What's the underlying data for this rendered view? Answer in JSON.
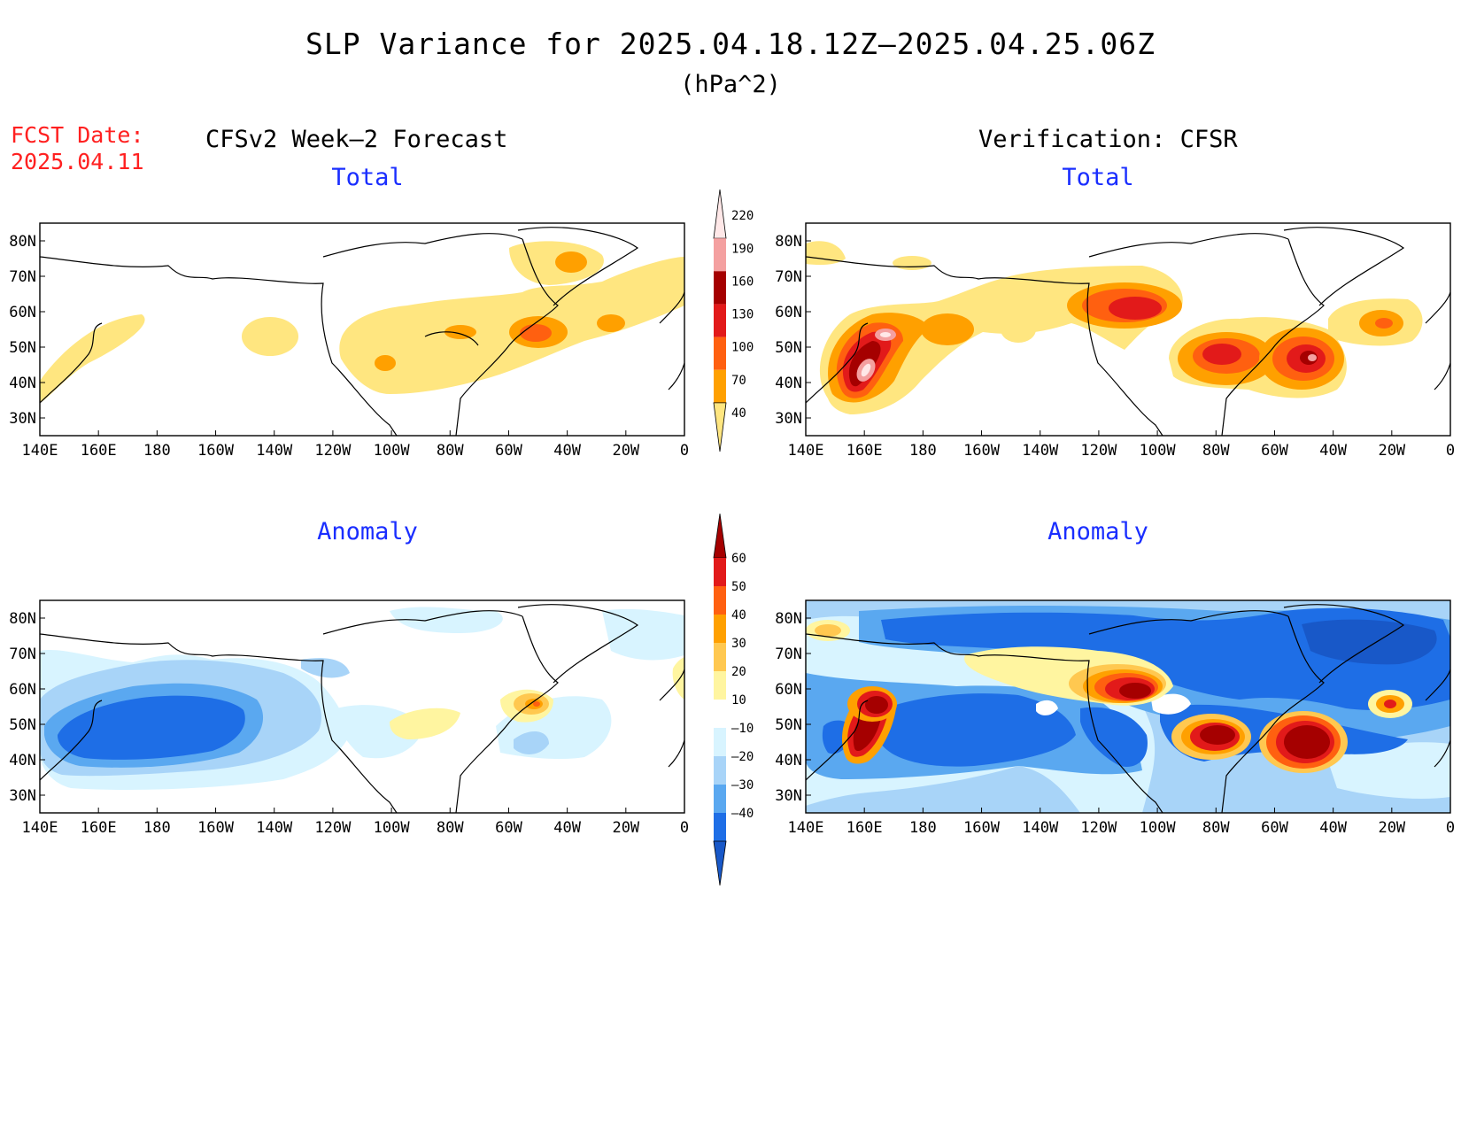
{
  "header": {
    "title": "SLP Variance for 2025.04.18.12Z–2025.04.25.06Z",
    "units": "(hPa^2)",
    "fcst_label": "FCST Date:",
    "fcst_date": "2025.04.11",
    "left_column_title": "CFSv2 Week–2 Forecast",
    "right_column_title": "Verification: CFSR"
  },
  "panels": [
    {
      "id": "fcst-total",
      "subtitle": "Total"
    },
    {
      "id": "verif-total",
      "subtitle": "Total"
    },
    {
      "id": "fcst-anomaly",
      "subtitle": "Anomaly"
    },
    {
      "id": "verif-anomaly",
      "subtitle": "Anomaly"
    }
  ],
  "axes": {
    "lon_ticks": [
      "140E",
      "160E",
      "180",
      "160W",
      "140W",
      "120W",
      "100W",
      "80W",
      "60W",
      "40W",
      "20W",
      "0"
    ],
    "lat_ticks": [
      "80N",
      "70N",
      "60N",
      "50N",
      "40N",
      "30N"
    ]
  },
  "colorbars": {
    "total": {
      "labels": [
        "220",
        "190",
        "160",
        "130",
        "100",
        "70",
        "40"
      ],
      "colors": [
        "#ffe8e8",
        "#f4a0a0",
        "#a50000",
        "#e21a1a",
        "#ff6010",
        "#ffa000",
        "#ffe680"
      ]
    },
    "anomaly": {
      "labels": [
        "60",
        "50",
        "40",
        "30",
        "20",
        "10",
        "–10",
        "–20",
        "–30",
        "–40"
      ],
      "colors": [
        "#a50000",
        "#e21a1a",
        "#ff6010",
        "#ffa000",
        "#ffc850",
        "#fff5a0",
        "#ffffff",
        "#d8f4ff",
        "#a8d4f8",
        "#5aa8f0",
        "#1e6ee6",
        "#1858c8"
      ]
    }
  }
}
